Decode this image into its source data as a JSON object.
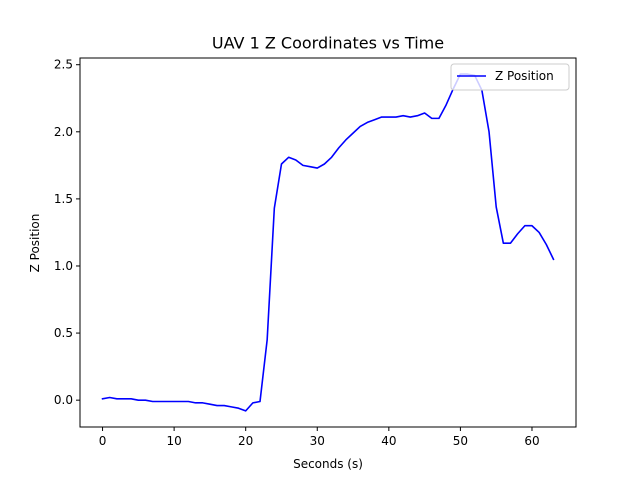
{
  "chart_data": {
    "type": "line",
    "title": "UAV 1 Z Coordinates vs Time",
    "xlabel": "Seconds (s)",
    "ylabel": "Z Position",
    "xlim": [
      -3.15,
      66.15
    ],
    "ylim": [
      -0.2,
      2.55
    ],
    "x_ticks": [
      0,
      10,
      20,
      30,
      40,
      50,
      60
    ],
    "y_ticks": [
      0.0,
      0.5,
      1.0,
      1.5,
      2.0,
      2.5
    ],
    "x_tick_labels": [
      "0",
      "10",
      "20",
      "30",
      "40",
      "50",
      "60"
    ],
    "y_tick_labels": [
      "0.0",
      "0.5",
      "1.0",
      "1.5",
      "2.0",
      "2.5"
    ],
    "grid": false,
    "legend_position": "top-right",
    "series": [
      {
        "name": "Z Position",
        "color": "#0000ff",
        "x": [
          0,
          1,
          2,
          3,
          4,
          5,
          6,
          7,
          8,
          9,
          10,
          11,
          12,
          13,
          14,
          15,
          16,
          17,
          18,
          19,
          20,
          21,
          22,
          23,
          24,
          25,
          26,
          27,
          28,
          29,
          30,
          31,
          32,
          33,
          34,
          35,
          36,
          37,
          38,
          39,
          40,
          41,
          42,
          43,
          44,
          45,
          46,
          47,
          48,
          49,
          50,
          51,
          52,
          53,
          54,
          55,
          56,
          57,
          58,
          59,
          60,
          61,
          62,
          63
        ],
        "y": [
          0.01,
          0.02,
          0.01,
          0.01,
          0.01,
          0.0,
          0.0,
          -0.01,
          -0.01,
          -0.01,
          -0.01,
          -0.01,
          -0.01,
          -0.02,
          -0.02,
          -0.03,
          -0.04,
          -0.04,
          -0.05,
          -0.06,
          -0.08,
          -0.02,
          -0.01,
          0.45,
          1.43,
          1.76,
          1.81,
          1.79,
          1.75,
          1.74,
          1.73,
          1.76,
          1.81,
          1.88,
          1.94,
          1.99,
          2.04,
          2.07,
          2.09,
          2.11,
          2.11,
          2.11,
          2.12,
          2.11,
          2.12,
          2.14,
          2.1,
          2.1,
          2.2,
          2.32,
          2.43,
          2.43,
          2.42,
          2.31,
          2.0,
          1.44,
          1.17,
          1.17,
          1.24,
          1.3,
          1.3,
          1.25,
          1.16,
          1.05
        ]
      }
    ]
  }
}
